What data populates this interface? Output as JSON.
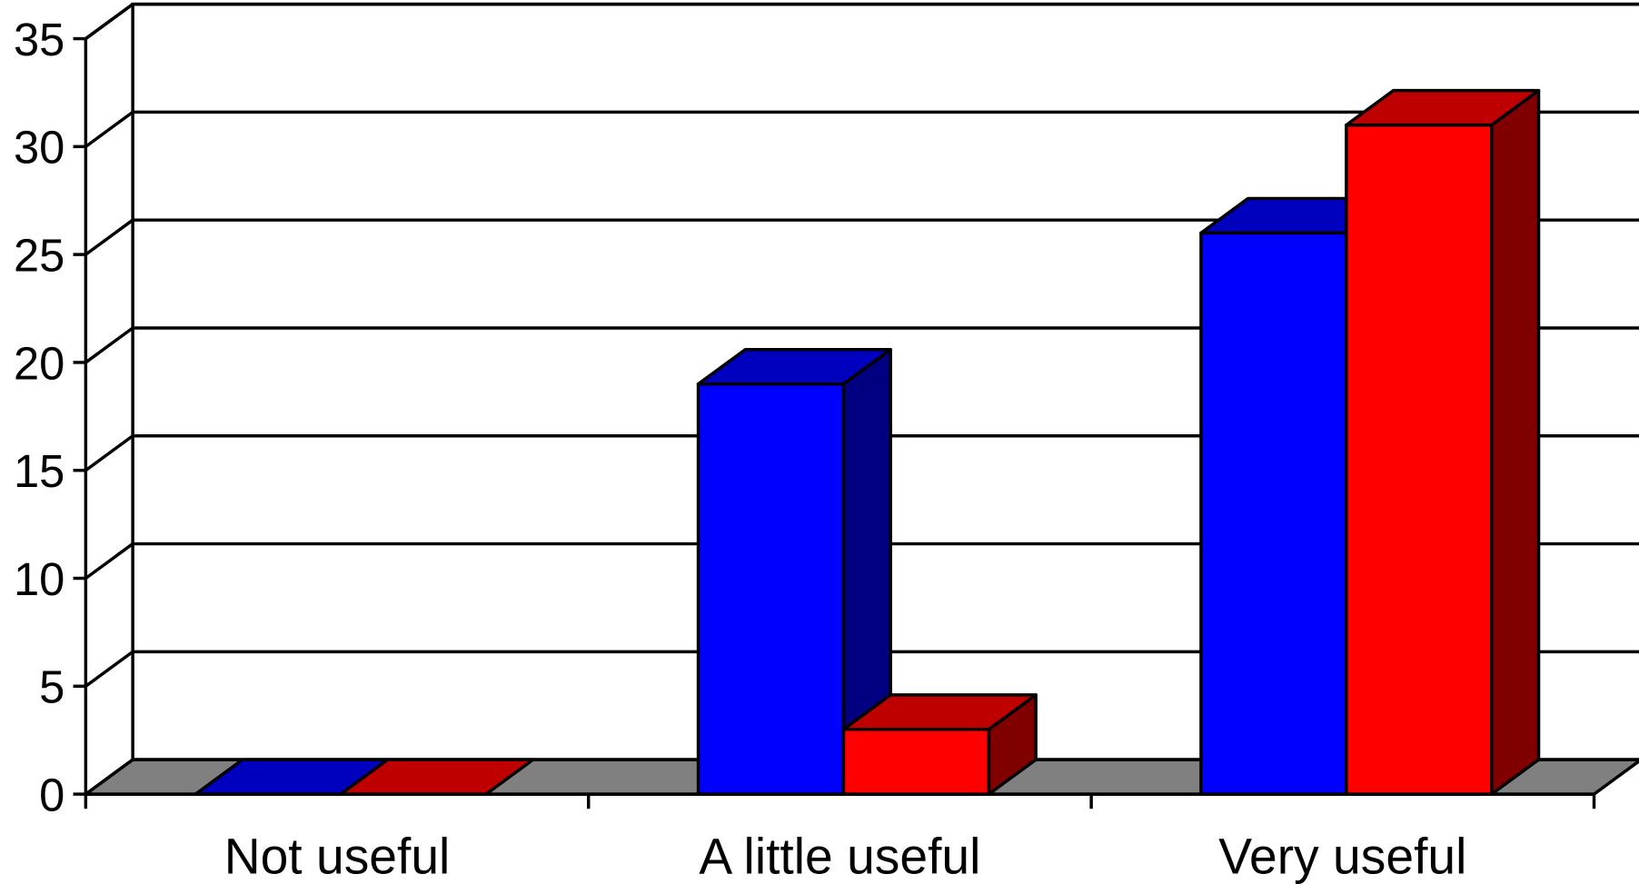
{
  "chart_data": {
    "type": "bar3d",
    "categories": [
      "Not useful",
      "A little useful",
      "Very useful"
    ],
    "series": [
      {
        "color": "#0000ff",
        "values": [
          0,
          19,
          26
        ]
      },
      {
        "color": "#ff0000",
        "values": [
          0,
          3,
          31
        ]
      }
    ],
    "ylim": [
      0,
      35
    ],
    "yticks": [
      0,
      5,
      10,
      15,
      20,
      25,
      30,
      35
    ],
    "grid": true
  }
}
